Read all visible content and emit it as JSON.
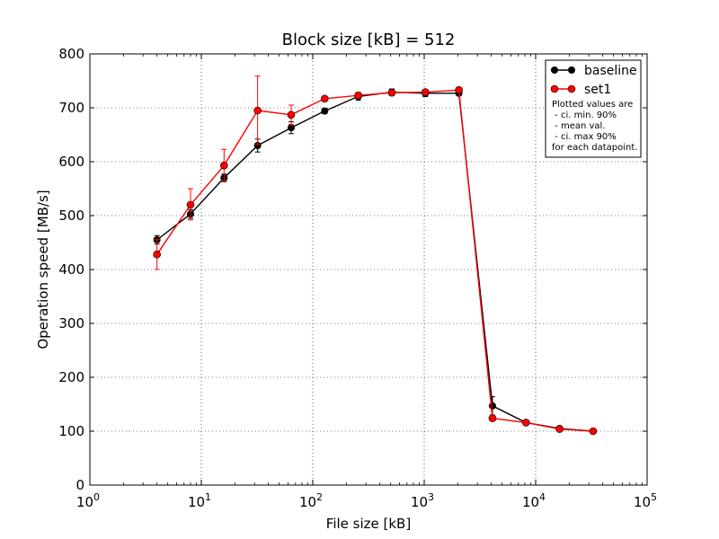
{
  "chart_data": {
    "type": "line",
    "title": "Block size [kB] = 512",
    "xlabel": "File size [kB]",
    "ylabel": "Operation speed [MB/s]",
    "xscale": "log",
    "xlim": [
      1,
      100000
    ],
    "ylim": [
      0,
      800
    ],
    "grid": true,
    "legend_position": "top-right",
    "x_ticks": [
      {
        "value": 1,
        "base": "10",
        "exp": "0"
      },
      {
        "value": 10,
        "base": "10",
        "exp": "1"
      },
      {
        "value": 100,
        "base": "10",
        "exp": "2"
      },
      {
        "value": 1000,
        "base": "10",
        "exp": "3"
      },
      {
        "value": 10000,
        "base": "10",
        "exp": "4"
      },
      {
        "value": 100000,
        "base": "10",
        "exp": "5"
      }
    ],
    "y_ticks": [
      "0",
      "100",
      "200",
      "300",
      "400",
      "500",
      "600",
      "700",
      "800"
    ],
    "x": [
      4,
      8,
      16,
      32,
      64,
      128,
      256,
      512,
      1024,
      2048,
      4096,
      8192,
      16384,
      32768
    ],
    "series": [
      {
        "name": "baseline",
        "color": "#000000",
        "values": [
          455,
          503,
          570,
          630,
          663,
          694,
          721,
          729,
          727,
          727,
          147,
          116,
          105,
          100
        ],
        "ci_low": [
          447,
          495,
          563,
          618,
          652,
          689,
          714,
          723,
          721,
          723,
          130,
          113,
          102,
          98
        ],
        "ci_high": [
          463,
          511,
          577,
          642,
          674,
          699,
          728,
          735,
          733,
          731,
          164,
          119,
          108,
          102
        ]
      },
      {
        "name": "set1",
        "color": "#ff0000",
        "values": [
          428,
          520,
          593,
          695,
          687,
          717,
          723,
          728,
          729,
          733,
          124,
          116,
          104,
          100
        ],
        "ci_low": [
          400,
          492,
          565,
          632,
          669,
          713,
          719,
          725,
          726,
          730,
          119,
          114,
          103,
          99
        ],
        "ci_high": [
          456,
          550,
          623,
          759,
          705,
          721,
          727,
          731,
          732,
          736,
          129,
          118,
          105,
          101
        ]
      }
    ],
    "legend_note": [
      "Plotted values are",
      " - ci. min. 90%",
      " - mean val.",
      " - ci. max 90%",
      "for each datapoint."
    ]
  }
}
